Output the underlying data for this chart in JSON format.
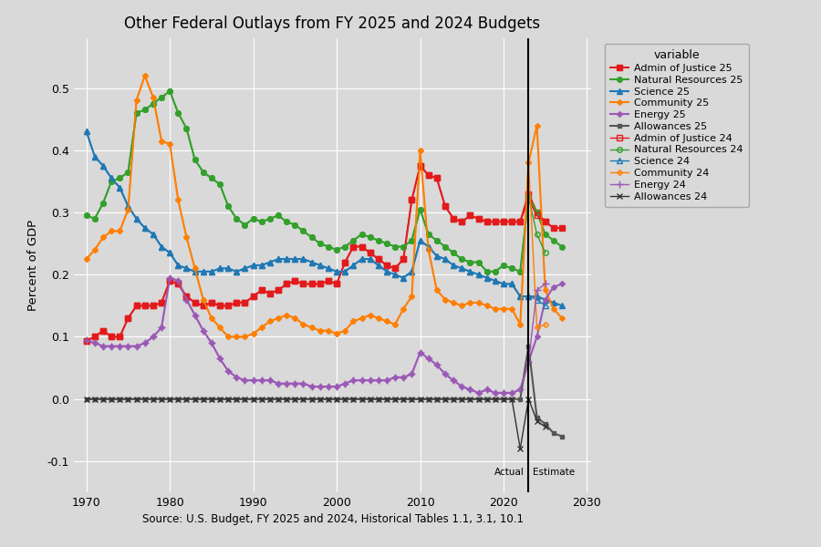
{
  "title": "Other Federal Outlays from FY 2025 and 2024 Budgets",
  "xlabel": "Source: U.S. Budget, FY 2025 and 2024, Historical Tables 1.1, 3.1, 10.1",
  "ylabel": "Percent of GDP",
  "background_color": "#d9d9d9",
  "legend_background": "#d9d9d9",
  "vertical_line_x": 2023,
  "years": [
    1969,
    1970,
    1971,
    1972,
    1973,
    1974,
    1975,
    1976,
    1977,
    1978,
    1979,
    1980,
    1981,
    1982,
    1983,
    1984,
    1985,
    1986,
    1987,
    1988,
    1989,
    1990,
    1991,
    1992,
    1993,
    1994,
    1995,
    1996,
    1997,
    1998,
    1999,
    2000,
    2001,
    2002,
    2003,
    2004,
    2005,
    2006,
    2007,
    2008,
    2009,
    2010,
    2011,
    2012,
    2013,
    2014,
    2015,
    2016,
    2017,
    2018,
    2019,
    2020,
    2021,
    2022,
    2023,
    2024,
    2025,
    2026,
    2027,
    2028
  ],
  "series": {
    "admin_justice_25": {
      "label": "Admin of Justice 25",
      "color": "#e31a1c",
      "marker": "s",
      "filled": true,
      "linewidth": 1.5,
      "markersize": 4,
      "values": [
        null,
        0.094,
        0.1,
        0.11,
        0.1,
        0.1,
        0.13,
        0.15,
        0.15,
        0.15,
        0.155,
        0.19,
        0.185,
        0.165,
        0.155,
        0.15,
        0.155,
        0.15,
        0.15,
        0.155,
        0.155,
        0.165,
        0.175,
        0.17,
        0.175,
        0.185,
        0.19,
        0.185,
        0.185,
        0.185,
        0.19,
        0.185,
        0.22,
        0.245,
        0.245,
        0.235,
        0.225,
        0.215,
        0.21,
        0.225,
        0.32,
        0.375,
        0.36,
        0.355,
        0.31,
        0.29,
        0.285,
        0.295,
        0.29,
        0.285,
        0.285,
        0.285,
        0.285,
        0.285,
        0.33,
        0.3,
        0.285,
        0.275,
        0.275,
        null
      ]
    },
    "natural_resources_25": {
      "label": "Natural Resources 25",
      "color": "#33a02c",
      "marker": "o",
      "filled": true,
      "linewidth": 1.5,
      "markersize": 4,
      "values": [
        null,
        0.295,
        0.29,
        0.315,
        0.35,
        0.355,
        0.365,
        0.46,
        0.465,
        0.475,
        0.485,
        0.495,
        0.46,
        0.435,
        0.385,
        0.365,
        0.355,
        0.345,
        0.31,
        0.29,
        0.28,
        0.29,
        0.285,
        0.29,
        0.295,
        0.285,
        0.28,
        0.27,
        0.26,
        0.25,
        0.245,
        0.24,
        0.245,
        0.255,
        0.265,
        0.26,
        0.255,
        0.25,
        0.245,
        0.245,
        0.255,
        0.305,
        0.265,
        0.255,
        0.245,
        0.235,
        0.225,
        0.22,
        0.22,
        0.205,
        0.205,
        0.215,
        0.21,
        0.205,
        0.325,
        0.3,
        0.265,
        0.255,
        0.245,
        null
      ]
    },
    "science_25": {
      "label": "Science 25",
      "color": "#1f78b4",
      "marker": "^",
      "filled": true,
      "linewidth": 1.5,
      "markersize": 4,
      "values": [
        null,
        0.43,
        0.39,
        0.375,
        0.355,
        0.34,
        0.31,
        0.29,
        0.275,
        0.265,
        0.245,
        0.235,
        0.215,
        0.21,
        0.205,
        0.205,
        0.205,
        0.21,
        0.21,
        0.205,
        0.21,
        0.215,
        0.215,
        0.22,
        0.225,
        0.225,
        0.225,
        0.225,
        0.22,
        0.215,
        0.21,
        0.205,
        0.205,
        0.215,
        0.225,
        0.225,
        0.215,
        0.205,
        0.2,
        0.195,
        0.205,
        0.255,
        0.245,
        0.23,
        0.225,
        0.215,
        0.21,
        0.205,
        0.2,
        0.195,
        0.19,
        0.185,
        0.185,
        0.165,
        0.165,
        0.165,
        0.16,
        0.155,
        0.15,
        null
      ]
    },
    "community_25": {
      "label": "Community 25",
      "color": "#ff7f00",
      "marker": "D",
      "filled": true,
      "linewidth": 1.5,
      "markersize": 3,
      "values": [
        null,
        0.225,
        0.24,
        0.26,
        0.27,
        0.27,
        0.305,
        0.48,
        0.52,
        0.485,
        0.415,
        0.41,
        0.32,
        0.26,
        0.21,
        0.16,
        0.13,
        0.115,
        0.1,
        0.1,
        0.1,
        0.105,
        0.115,
        0.125,
        0.13,
        0.135,
        0.13,
        0.12,
        0.115,
        0.11,
        0.11,
        0.105,
        0.11,
        0.125,
        0.13,
        0.135,
        0.13,
        0.125,
        0.12,
        0.145,
        0.165,
        0.4,
        0.24,
        0.175,
        0.16,
        0.155,
        0.15,
        0.155,
        0.155,
        0.15,
        0.145,
        0.145,
        0.145,
        0.12,
        0.38,
        0.44,
        0.175,
        0.145,
        0.13,
        null
      ]
    },
    "energy_25": {
      "label": "Energy 25",
      "color": "#9b59b6",
      "marker": "D",
      "filled": true,
      "linewidth": 1.5,
      "markersize": 3,
      "values": [
        null,
        0.095,
        0.09,
        0.085,
        0.085,
        0.085,
        0.085,
        0.085,
        0.09,
        0.1,
        0.115,
        0.195,
        0.19,
        0.16,
        0.135,
        0.11,
        0.09,
        0.065,
        0.045,
        0.035,
        0.03,
        0.03,
        0.03,
        0.03,
        0.025,
        0.025,
        0.025,
        0.025,
        0.02,
        0.02,
        0.02,
        0.02,
        0.025,
        0.03,
        0.03,
        0.03,
        0.03,
        0.03,
        0.035,
        0.035,
        0.04,
        0.075,
        0.065,
        0.055,
        0.04,
        0.03,
        0.02,
        0.015,
        0.01,
        0.015,
        0.01,
        0.01,
        0.01,
        0.015,
        0.06,
        0.1,
        0.16,
        0.18,
        0.185,
        null
      ]
    },
    "allowances_25": {
      "label": "Allowances 25",
      "color": "#555555",
      "marker": "s",
      "filled": true,
      "linewidth": 1.5,
      "markersize": 3,
      "values": [
        null,
        0.0,
        0.0,
        0.0,
        0.0,
        0.0,
        0.0,
        0.0,
        0.0,
        0.0,
        0.0,
        0.0,
        0.0,
        0.0,
        0.0,
        0.0,
        0.0,
        0.0,
        0.0,
        0.0,
        0.0,
        0.0,
        0.0,
        0.0,
        0.0,
        0.0,
        0.0,
        0.0,
        0.0,
        0.0,
        0.0,
        0.0,
        0.0,
        0.0,
        0.0,
        0.0,
        0.0,
        0.0,
        0.0,
        0.0,
        0.0,
        0.0,
        0.0,
        0.0,
        0.0,
        0.0,
        0.0,
        0.0,
        0.0,
        0.0,
        0.0,
        0.0,
        0.0,
        0.0,
        0.085,
        -0.03,
        -0.04,
        -0.055,
        -0.06,
        null
      ]
    },
    "admin_justice_24": {
      "label": "Admin of Justice 24",
      "color": "#e31a1c",
      "marker": "s",
      "filled": false,
      "linewidth": 1.0,
      "markersize": 4,
      "values": [
        null,
        0.094,
        0.1,
        0.11,
        0.1,
        0.1,
        0.13,
        0.15,
        0.15,
        0.15,
        0.155,
        0.19,
        0.185,
        0.165,
        0.155,
        0.15,
        0.155,
        0.15,
        0.15,
        0.155,
        0.155,
        0.165,
        0.175,
        0.17,
        0.175,
        0.185,
        0.19,
        0.185,
        0.185,
        0.185,
        0.19,
        0.185,
        0.22,
        0.245,
        0.245,
        0.235,
        0.225,
        0.215,
        0.21,
        0.225,
        0.32,
        0.375,
        0.36,
        0.355,
        0.31,
        0.29,
        0.285,
        0.295,
        0.29,
        0.285,
        0.285,
        0.285,
        0.285,
        0.285,
        0.32,
        0.295,
        0.285,
        null,
        null,
        null
      ]
    },
    "natural_resources_24": {
      "label": "Natural Resources 24",
      "color": "#33a02c",
      "marker": "o",
      "filled": false,
      "linewidth": 1.0,
      "markersize": 4,
      "values": [
        null,
        0.295,
        0.29,
        0.315,
        0.35,
        0.355,
        0.365,
        0.46,
        0.465,
        0.475,
        0.485,
        0.495,
        0.46,
        0.435,
        0.385,
        0.365,
        0.355,
        0.345,
        0.31,
        0.29,
        0.28,
        0.29,
        0.285,
        0.29,
        0.295,
        0.285,
        0.28,
        0.27,
        0.26,
        0.25,
        0.245,
        0.24,
        0.245,
        0.255,
        0.265,
        0.26,
        0.255,
        0.25,
        0.245,
        0.245,
        0.255,
        0.305,
        0.265,
        0.255,
        0.245,
        0.235,
        0.225,
        0.22,
        0.22,
        0.205,
        0.205,
        0.215,
        0.21,
        0.205,
        0.325,
        0.265,
        0.235,
        null,
        null,
        null
      ]
    },
    "science_24": {
      "label": "Science 24",
      "color": "#1f78b4",
      "marker": "^",
      "filled": false,
      "linewidth": 1.0,
      "markersize": 4,
      "values": [
        null,
        0.43,
        0.39,
        0.375,
        0.355,
        0.34,
        0.31,
        0.29,
        0.275,
        0.265,
        0.245,
        0.235,
        0.215,
        0.21,
        0.205,
        0.205,
        0.205,
        0.21,
        0.21,
        0.205,
        0.21,
        0.215,
        0.215,
        0.22,
        0.225,
        0.225,
        0.225,
        0.225,
        0.22,
        0.215,
        0.21,
        0.205,
        0.205,
        0.215,
        0.225,
        0.225,
        0.215,
        0.205,
        0.2,
        0.195,
        0.205,
        0.255,
        0.245,
        0.23,
        0.225,
        0.215,
        0.21,
        0.205,
        0.2,
        0.195,
        0.19,
        0.185,
        0.185,
        0.165,
        0.165,
        0.16,
        0.15,
        null,
        null,
        null
      ]
    },
    "community_24": {
      "label": "Community 24",
      "color": "#ff7f00",
      "marker": "D",
      "filled": false,
      "linewidth": 1.0,
      "markersize": 3,
      "values": [
        null,
        0.225,
        0.24,
        0.26,
        0.27,
        0.27,
        0.305,
        0.48,
        0.52,
        0.485,
        0.415,
        0.41,
        0.32,
        0.26,
        0.21,
        0.16,
        0.13,
        0.115,
        0.1,
        0.1,
        0.1,
        0.105,
        0.115,
        0.125,
        0.13,
        0.135,
        0.13,
        0.12,
        0.115,
        0.11,
        0.11,
        0.105,
        0.11,
        0.125,
        0.13,
        0.135,
        0.13,
        0.125,
        0.12,
        0.145,
        0.165,
        0.4,
        0.24,
        0.175,
        0.16,
        0.155,
        0.15,
        0.155,
        0.155,
        0.15,
        0.145,
        0.145,
        0.145,
        0.12,
        0.38,
        0.115,
        0.12,
        null,
        null,
        null
      ]
    },
    "energy_24": {
      "label": "Energy 24",
      "color": "#9b59b6",
      "marker": "+",
      "filled": false,
      "linewidth": 1.0,
      "markersize": 6,
      "values": [
        null,
        0.095,
        0.09,
        0.085,
        0.085,
        0.085,
        0.085,
        0.085,
        0.09,
        0.1,
        0.115,
        0.195,
        0.19,
        0.16,
        0.135,
        0.11,
        0.09,
        0.065,
        0.045,
        0.035,
        0.03,
        0.03,
        0.03,
        0.03,
        0.025,
        0.025,
        0.025,
        0.025,
        0.02,
        0.02,
        0.02,
        0.02,
        0.025,
        0.03,
        0.03,
        0.03,
        0.03,
        0.03,
        0.035,
        0.035,
        0.04,
        0.075,
        0.065,
        0.055,
        0.04,
        0.03,
        0.02,
        0.015,
        0.01,
        0.015,
        0.01,
        0.01,
        0.01,
        0.015,
        0.06,
        0.175,
        0.185,
        null,
        null,
        null
      ]
    },
    "allowances_24": {
      "label": "Allowances 24",
      "color": "#333333",
      "marker": "x",
      "filled": false,
      "linewidth": 1.0,
      "markersize": 5,
      "values": [
        null,
        0.0,
        0.0,
        0.0,
        0.0,
        0.0,
        0.0,
        0.0,
        0.0,
        0.0,
        0.0,
        0.0,
        0.0,
        0.0,
        0.0,
        0.0,
        0.0,
        0.0,
        0.0,
        0.0,
        0.0,
        0.0,
        0.0,
        0.0,
        0.0,
        0.0,
        0.0,
        0.0,
        0.0,
        0.0,
        0.0,
        0.0,
        0.0,
        0.0,
        0.0,
        0.0,
        0.0,
        0.0,
        0.0,
        0.0,
        0.0,
        0.0,
        0.0,
        0.0,
        0.0,
        0.0,
        0.0,
        0.0,
        0.0,
        0.0,
        0.0,
        0.0,
        0.0,
        -0.08,
        0.0,
        -0.035,
        -0.045,
        null,
        null,
        null
      ]
    }
  },
  "ylim": [
    -0.15,
    0.58
  ],
  "yticks": [
    -0.1,
    0.0,
    0.1,
    0.2,
    0.3,
    0.4,
    0.5
  ],
  "xlim": [
    1968.5,
    2030.5
  ],
  "xticks": [
    1970,
    1980,
    1990,
    2000,
    2010,
    2020,
    2030
  ]
}
